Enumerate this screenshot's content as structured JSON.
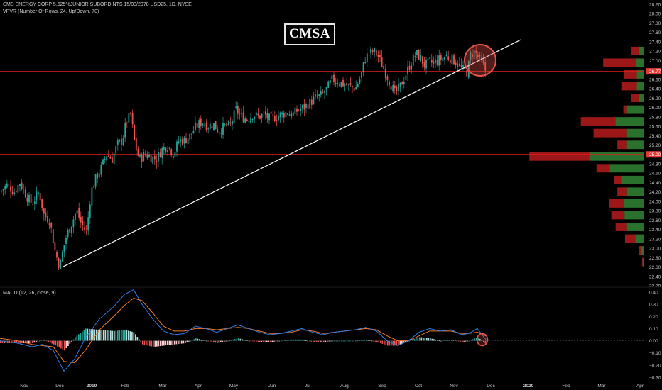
{
  "header": {
    "line1": "CMS ENERGY CORP 5.625%JUNIOR SUBORD NTS 15/03/2078 USD25, 1D, NYSE",
    "line2": "VPVR (Number Of Rows, 24, Up/Down, 70)",
    "ticker_box": "CMSA"
  },
  "macd_label": "MACD (12, 26, close, 9)",
  "colors": {
    "up": "#26a69a",
    "down": "#ef5350",
    "hline": "#e11d1d",
    "trendline": "#ffffff",
    "macd": "#2f7de1",
    "signal": "#f27a2e",
    "vp_up": "#2e7d32",
    "vp_down": "#b71c1c",
    "circle": "#e5534b",
    "tag_bg": "#e53935"
  },
  "chart_data": {
    "type": "candlestick",
    "price_axis": {
      "ticks": [
        "28.20",
        "28.00",
        "27.80",
        "27.60",
        "27.40",
        "27.20",
        "27.00",
        "26.60",
        "26.40",
        "26.20",
        "26.00",
        "25.80",
        "25.60",
        "25.40",
        "25.20",
        "24.80",
        "24.60",
        "24.40",
        "24.20",
        "24.00",
        "23.80",
        "23.60",
        "23.40",
        "23.20",
        "23.00",
        "22.80",
        "22.60",
        "22.40",
        "22.20"
      ],
      "ylim": [
        22.2,
        28.2
      ],
      "current_price": "26.77",
      "level_price": "25.00"
    },
    "macd_axis": {
      "ticks": [
        "0.40",
        "0.30",
        "0.20",
        "0.10",
        "0.00",
        "−0.10",
        "−0.20",
        "−0.30"
      ],
      "ylim": [
        -0.3,
        0.4
      ]
    },
    "time_axis": [
      "Nov",
      "Dec",
      "2019",
      "Feb",
      "Mar",
      "Apr",
      "May",
      "Jun",
      "Jul",
      "Aug",
      "Sep",
      "Oct",
      "Nov",
      "Dec",
      "2020",
      "Feb",
      "Mar",
      "Apr"
    ],
    "price_path": [
      [
        0,
        24.2
      ],
      [
        10,
        24.35
      ],
      [
        20,
        24.2
      ],
      [
        28,
        24.4
      ],
      [
        38,
        24.1
      ],
      [
        45,
        23.95
      ],
      [
        55,
        24.2
      ],
      [
        62,
        23.7
      ],
      [
        70,
        23.6
      ],
      [
        78,
        22.9
      ],
      [
        84,
        22.6
      ],
      [
        92,
        23.2
      ],
      [
        100,
        23.5
      ],
      [
        108,
        23.8
      ],
      [
        115,
        23.5
      ],
      [
        122,
        23.35
      ],
      [
        128,
        24.2
      ],
      [
        135,
        24.5
      ],
      [
        142,
        24.7
      ],
      [
        150,
        25.0
      ],
      [
        158,
        24.9
      ],
      [
        165,
        25.2
      ],
      [
        172,
        25.3
      ],
      [
        178,
        25.7
      ],
      [
        184,
        25.85
      ],
      [
        190,
        25.2
      ],
      [
        196,
        24.9
      ],
      [
        204,
        25.0
      ],
      [
        212,
        24.95
      ],
      [
        220,
        24.9
      ],
      [
        228,
        25.1
      ],
      [
        236,
        25.2
      ],
      [
        244,
        25.0
      ],
      [
        252,
        25.3
      ],
      [
        260,
        25.3
      ],
      [
        268,
        25.4
      ],
      [
        276,
        25.6
      ],
      [
        284,
        25.7
      ],
      [
        292,
        25.6
      ],
      [
        300,
        25.65
      ],
      [
        308,
        25.5
      ],
      [
        316,
        25.6
      ],
      [
        324,
        25.6
      ],
      [
        332,
        25.95
      ],
      [
        340,
        25.8
      ],
      [
        348,
        25.75
      ],
      [
        356,
        25.85
      ],
      [
        364,
        25.8
      ],
      [
        372,
        25.85
      ],
      [
        380,
        25.75
      ],
      [
        388,
        25.8
      ],
      [
        396,
        25.85
      ],
      [
        404,
        25.9
      ],
      [
        412,
        25.85
      ],
      [
        420,
        25.95
      ],
      [
        428,
        26.0
      ],
      [
        436,
        26.1
      ],
      [
        444,
        26.2
      ],
      [
        452,
        26.25
      ],
      [
        460,
        26.4
      ],
      [
        468,
        26.6
      ],
      [
        476,
        26.55
      ],
      [
        484,
        26.5
      ],
      [
        492,
        26.45
      ],
      [
        500,
        26.4
      ],
      [
        508,
        26.65
      ],
      [
        514,
        27.05
      ],
      [
        520,
        27.15
      ],
      [
        526,
        27.2
      ],
      [
        532,
        27.1
      ],
      [
        538,
        26.9
      ],
      [
        544,
        26.7
      ],
      [
        550,
        26.5
      ],
      [
        556,
        26.3
      ],
      [
        562,
        26.4
      ],
      [
        568,
        26.6
      ],
      [
        574,
        26.8
      ],
      [
        580,
        27.0
      ],
      [
        586,
        27.15
      ],
      [
        592,
        27.05
      ],
      [
        598,
        26.9
      ],
      [
        604,
        26.95
      ],
      [
        610,
        26.95
      ],
      [
        616,
        27.0
      ],
      [
        622,
        27.05
      ],
      [
        628,
        27.1
      ],
      [
        634,
        27.05
      ],
      [
        640,
        27.0
      ],
      [
        646,
        26.9
      ],
      [
        652,
        26.8
      ],
      [
        658,
        26.75
      ],
      [
        662,
        27.1
      ],
      [
        668,
        27.2
      ],
      [
        674,
        27.05
      ],
      [
        680,
        26.9
      ],
      [
        684,
        26.77
      ]
    ],
    "volume_profile": [
      {
        "price": 27.2,
        "up": 0.07,
        "down": 0.12
      },
      {
        "price": 26.95,
        "up": 0.1,
        "down": 0.55
      },
      {
        "price": 26.7,
        "up": 0.09,
        "down": 0.22
      },
      {
        "price": 26.45,
        "up": 0.09,
        "down": 0.26
      },
      {
        "price": 26.2,
        "up": 0.07,
        "down": 0.12
      },
      {
        "price": 25.95,
        "up": 0.21,
        "down": 0.06
      },
      {
        "price": 25.7,
        "up": 0.35,
        "down": 0.58
      },
      {
        "price": 25.45,
        "up": 0.21,
        "down": 0.56
      },
      {
        "price": 25.2,
        "up": 0.21,
        "down": 0.16
      },
      {
        "price": 24.95,
        "up": 0.67,
        "down": 1.0
      },
      {
        "price": 24.7,
        "up": 0.42,
        "down": 0.22
      },
      {
        "price": 24.45,
        "up": 0.28,
        "down": 0.12
      },
      {
        "price": 24.2,
        "up": 0.21,
        "down": 0.16
      },
      {
        "price": 23.95,
        "up": 0.25,
        "down": 0.25
      },
      {
        "price": 23.7,
        "up": 0.24,
        "down": 0.22
      },
      {
        "price": 23.45,
        "up": 0.21,
        "down": 0.19
      },
      {
        "price": 23.2,
        "up": 0.11,
        "down": 0.17
      },
      {
        "price": 22.95,
        "up": 0.04,
        "down": 0.04
      },
      {
        "price": 22.7,
        "up": 0.02,
        "down": 0.01
      }
    ],
    "trendline": [
      [
        88,
        22.6
      ],
      [
        734,
        27.45
      ]
    ],
    "macd_line": [
      [
        0,
        0.0
      ],
      [
        25,
        -0.02
      ],
      [
        45,
        -0.05
      ],
      [
        60,
        -0.03
      ],
      [
        75,
        -0.08
      ],
      [
        90,
        -0.25
      ],
      [
        105,
        -0.15
      ],
      [
        120,
        0.02
      ],
      [
        140,
        0.18
      ],
      [
        160,
        0.28
      ],
      [
        175,
        0.38
      ],
      [
        188,
        0.42
      ],
      [
        200,
        0.3
      ],
      [
        215,
        0.18
      ],
      [
        230,
        0.08
      ],
      [
        245,
        0.05
      ],
      [
        260,
        0.06
      ],
      [
        275,
        0.12
      ],
      [
        290,
        0.1
      ],
      [
        305,
        0.07
      ],
      [
        320,
        0.1
      ],
      [
        335,
        0.13
      ],
      [
        350,
        0.1
      ],
      [
        365,
        0.07
      ],
      [
        380,
        0.05
      ],
      [
        395,
        0.06
      ],
      [
        410,
        0.08
      ],
      [
        425,
        0.1
      ],
      [
        440,
        0.07
      ],
      [
        455,
        0.05
      ],
      [
        470,
        0.07
      ],
      [
        485,
        0.08
      ],
      [
        500,
        0.09
      ],
      [
        515,
        0.11
      ],
      [
        530,
        0.08
      ],
      [
        545,
        0.0
      ],
      [
        560,
        -0.04
      ],
      [
        575,
        0.0
      ],
      [
        590,
        0.07
      ],
      [
        605,
        0.1
      ],
      [
        620,
        0.08
      ],
      [
        635,
        0.09
      ],
      [
        650,
        0.05
      ],
      [
        660,
        0.06
      ],
      [
        672,
        0.1
      ],
      [
        684,
        0.01
      ]
    ],
    "signal_line": [
      [
        0,
        0.02
      ],
      [
        25,
        0.0
      ],
      [
        45,
        -0.03
      ],
      [
        60,
        -0.04
      ],
      [
        75,
        -0.05
      ],
      [
        90,
        -0.17
      ],
      [
        105,
        -0.18
      ],
      [
        120,
        -0.08
      ],
      [
        140,
        0.09
      ],
      [
        160,
        0.2
      ],
      [
        175,
        0.29
      ],
      [
        188,
        0.35
      ],
      [
        200,
        0.33
      ],
      [
        215,
        0.23
      ],
      [
        230,
        0.12
      ],
      [
        245,
        0.08
      ],
      [
        260,
        0.08
      ],
      [
        275,
        0.1
      ],
      [
        290,
        0.1
      ],
      [
        305,
        0.09
      ],
      [
        320,
        0.1
      ],
      [
        335,
        0.11
      ],
      [
        350,
        0.1
      ],
      [
        365,
        0.08
      ],
      [
        380,
        0.06
      ],
      [
        395,
        0.06
      ],
      [
        410,
        0.07
      ],
      [
        425,
        0.09
      ],
      [
        440,
        0.08
      ],
      [
        455,
        0.06
      ],
      [
        470,
        0.07
      ],
      [
        485,
        0.08
      ],
      [
        500,
        0.09
      ],
      [
        515,
        0.1
      ],
      [
        530,
        0.09
      ],
      [
        545,
        0.04
      ],
      [
        560,
        0.0
      ],
      [
        575,
        0.0
      ],
      [
        590,
        0.04
      ],
      [
        605,
        0.08
      ],
      [
        620,
        0.08
      ],
      [
        635,
        0.08
      ],
      [
        650,
        0.06
      ],
      [
        660,
        0.06
      ],
      [
        672,
        0.07
      ],
      [
        684,
        0.04
      ]
    ]
  }
}
